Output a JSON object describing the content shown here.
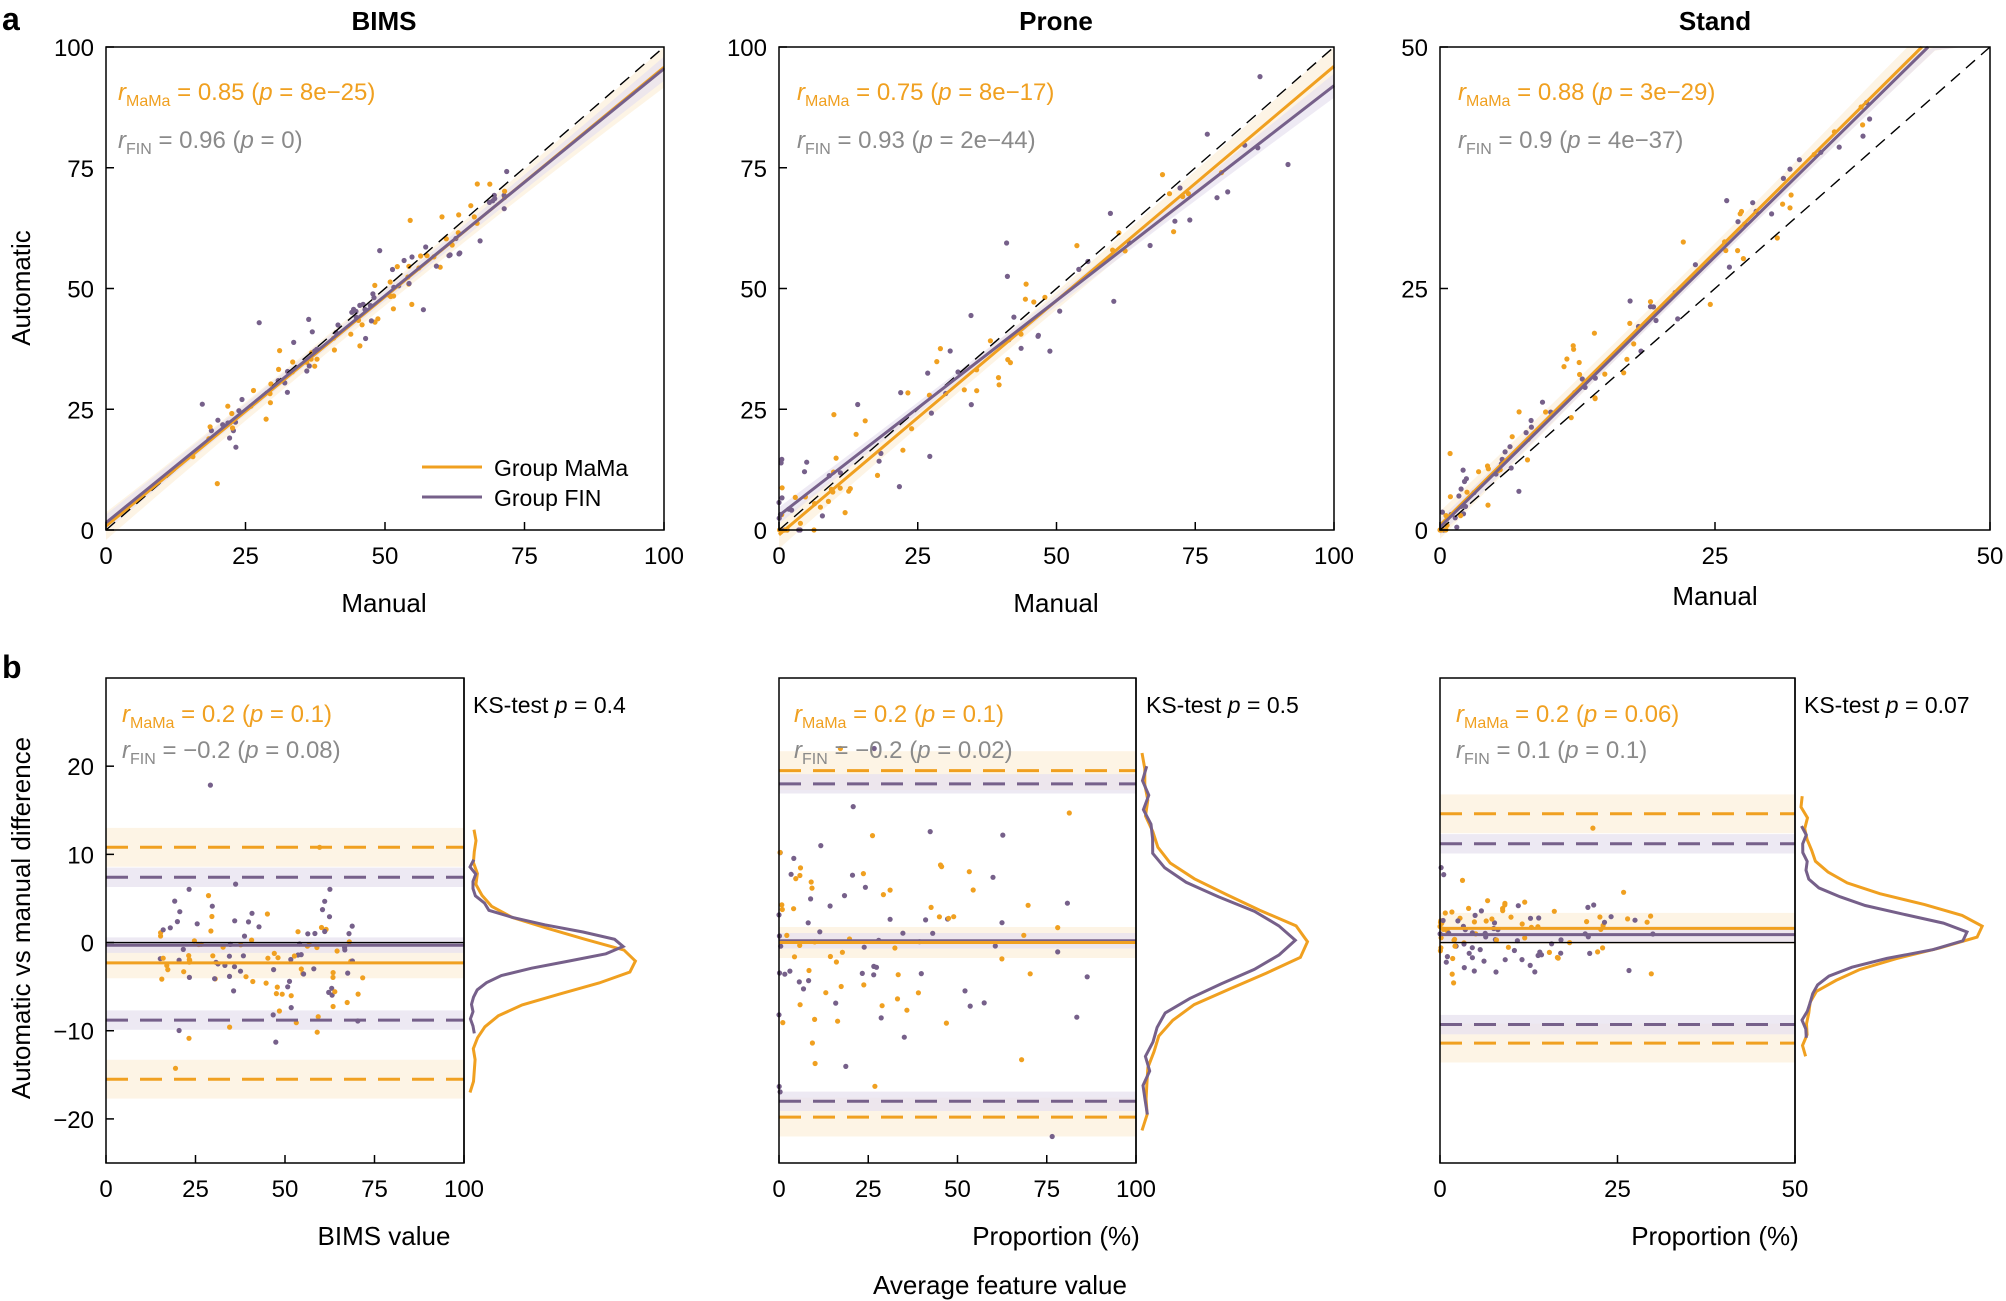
{
  "colors": {
    "mama": "#F0A020",
    "fin": "#76608A",
    "band_mama": "#FBEBD0",
    "band_fin": "#E7E1EF",
    "gray_text": "#8A8A8A",
    "axis": "#000000"
  },
  "panel_labels": {
    "a": "a",
    "b": "b"
  },
  "legend": {
    "mama": "Group MaMa",
    "fin": "Group FIN"
  },
  "shared": {
    "ylabel_a": "Automatic",
    "ylabel_b": "Automatic vs manual difference",
    "xlabel_bottom": "Average feature value",
    "r_symbol": "r",
    "mama_sub": "MaMa",
    "fin_sub": "FIN",
    "p_symbol": "p",
    "ks_label": "KS-test"
  },
  "chart_data": [
    {
      "type": "scatter",
      "title": "BIMS",
      "xlabel": "Manual",
      "xlim": [
        0,
        100
      ],
      "ylim": [
        0,
        100
      ],
      "xticks": [
        "0",
        "25",
        "50",
        "75",
        "100"
      ],
      "yticks": [
        "0",
        "25",
        "50",
        "75",
        "100"
      ],
      "identity_line": true,
      "mama": {
        "r": "0.85",
        "p": "8e−25",
        "fit": [
          0.8,
          0.95
        ]
      },
      "fin": {
        "r": "0.96",
        "p": "0",
        "fit": [
          1.5,
          0.94
        ]
      },
      "seed": 11,
      "n_points": 120,
      "x_range": [
        15,
        72
      ],
      "scatter_sd": 4
    },
    {
      "type": "scatter",
      "title": "Prone",
      "xlabel": "Manual",
      "xlim": [
        0,
        100
      ],
      "ylim": [
        0,
        100
      ],
      "xticks": [
        "0",
        "25",
        "50",
        "75",
        "100"
      ],
      "yticks": [
        "0",
        "25",
        "50",
        "75",
        "100"
      ],
      "identity_line": true,
      "mama": {
        "r": "0.75",
        "p": "8e−17",
        "fit": [
          -1,
          0.97
        ]
      },
      "fin": {
        "r": "0.93",
        "p": "2e−44",
        "fit": [
          3,
          0.89
        ]
      },
      "seed": 23,
      "n_points": 110,
      "x_range": [
        0,
        92
      ],
      "scatter_sd": 7
    },
    {
      "type": "scatter",
      "title": "Stand",
      "xlabel": "Manual",
      "xlim": [
        0,
        50
      ],
      "ylim": [
        0,
        50
      ],
      "xticks": [
        "0",
        "25",
        "50"
      ],
      "yticks": [
        "0",
        "25",
        "50"
      ],
      "identity_line": true,
      "mama": {
        "r": "0.88",
        "p": "3e−29",
        "fit": [
          0.5,
          1.13
        ]
      },
      "fin": {
        "r": "0.9",
        "p": "4e−37",
        "fit": [
          0.3,
          1.12
        ]
      },
      "seed": 37,
      "n_points": 110,
      "x_range": [
        0,
        40
      ],
      "scatter_sd": 2.5
    },
    {
      "type": "scatter",
      "title": "",
      "xlabel": "BIMS value",
      "xlim": [
        0,
        100
      ],
      "ylim": [
        -25,
        30
      ],
      "xticks": [
        "0",
        "25",
        "50",
        "75",
        "100"
      ],
      "yticks": [
        "−20",
        "−10",
        "0",
        "10",
        "20"
      ],
      "mama": {
        "r": "0.2",
        "p": "0.1",
        "bias": -2.3,
        "loa": [
          -15.5,
          10.8
        ]
      },
      "fin": {
        "r": "−0.2",
        "p": "0.08",
        "bias": -0.3,
        "loa": [
          -8.8,
          7.4
        ]
      },
      "ks_p": "0.4",
      "seed": 51,
      "n_points": 120,
      "x_range": [
        15,
        72
      ],
      "scatter_sd": 5
    },
    {
      "type": "scatter",
      "title": "",
      "xlabel": "Proportion (%)",
      "xlim": [
        0,
        100
      ],
      "ylim": [
        -25,
        30
      ],
      "xticks": [
        "0",
        "25",
        "50",
        "75",
        "100"
      ],
      "yticks": [],
      "mama": {
        "r": "0.2",
        "p": "0.1",
        "bias": 0,
        "loa": [
          -19.8,
          19.5
        ]
      },
      "fin": {
        "r": "−0.2",
        "p": "0.02",
        "bias": 0.2,
        "loa": [
          -18,
          18
        ]
      },
      "ks_p": "0.5",
      "seed": 67,
      "n_points": 110,
      "x_range": [
        0,
        88
      ],
      "scatter_sd": 8
    },
    {
      "type": "scatter",
      "title": "",
      "xlabel": "Proportion (%)",
      "xlim": [
        0,
        50
      ],
      "ylim": [
        -25,
        30
      ],
      "xticks": [
        "0",
        "25",
        "50"
      ],
      "yticks": [],
      "mama": {
        "r": "0.2",
        "p": "0.06",
        "bias": 1.6,
        "loa": [
          -11.4,
          14.6
        ]
      },
      "fin": {
        "r": "0.1",
        "p": "0.1",
        "bias": 0.9,
        "loa": [
          -9.3,
          11.2
        ]
      },
      "ks_p": "0.07",
      "seed": 79,
      "n_points": 110,
      "x_range": [
        0,
        30
      ],
      "scatter_sd": 3
    }
  ]
}
